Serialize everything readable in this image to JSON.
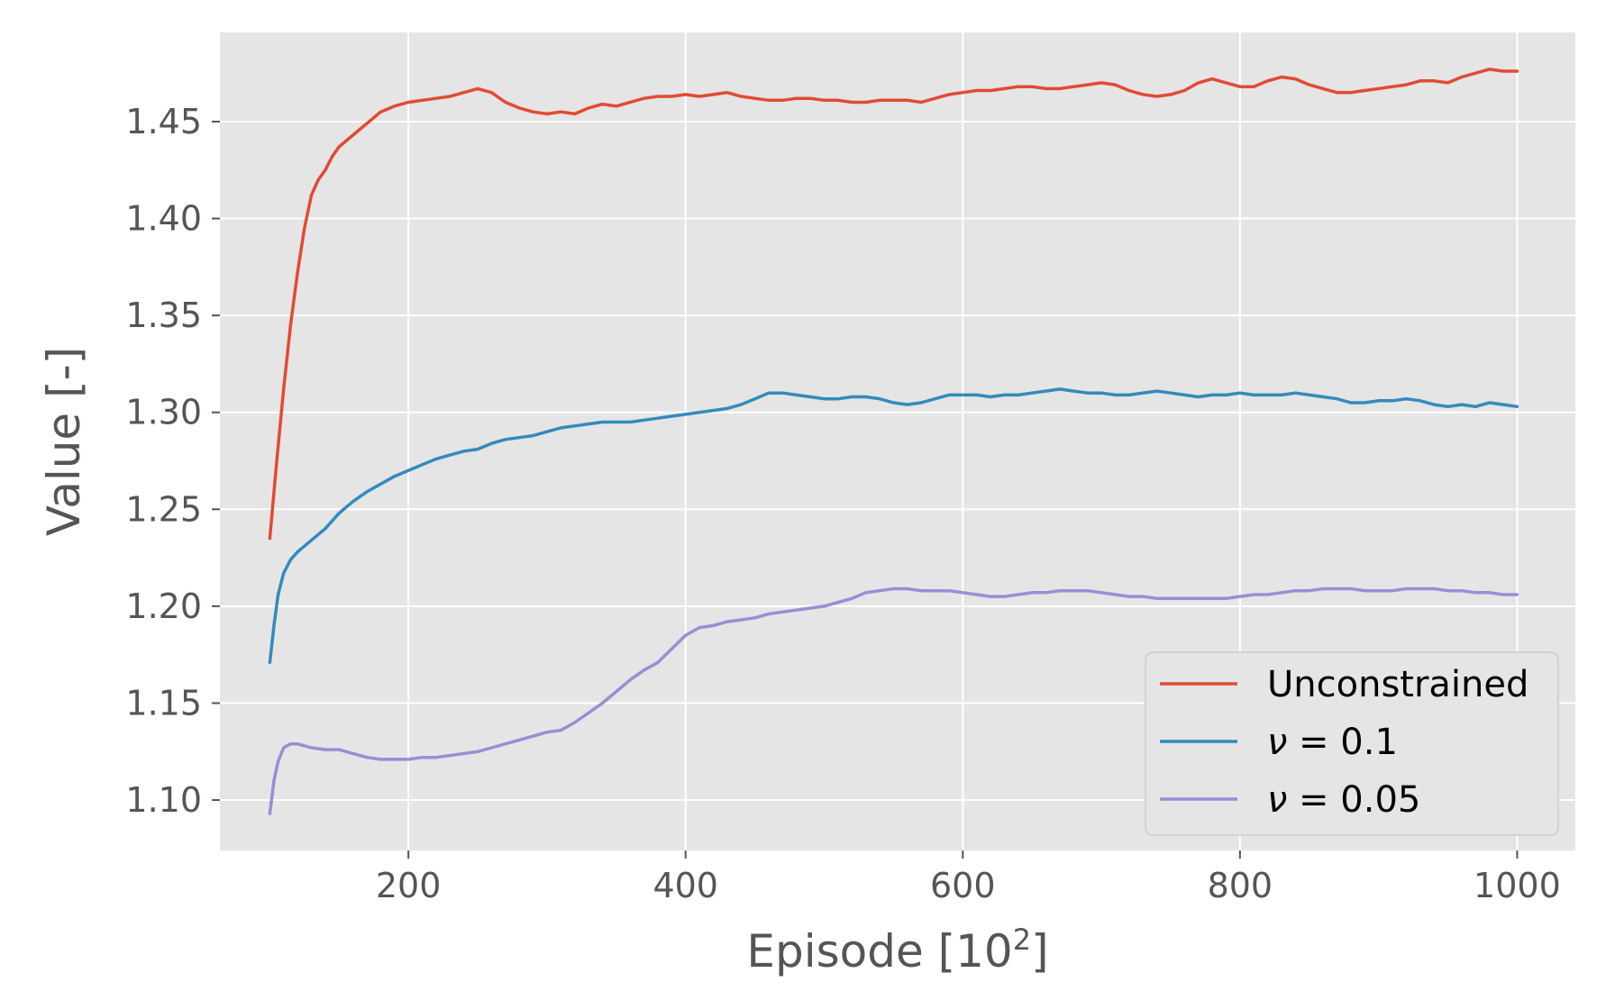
{
  "chart_data": {
    "type": "line",
    "xlabel_main": "Episode [10",
    "xlabel_sup": "2",
    "xlabel_end": "]",
    "ylabel": "Value [-]",
    "xlim": [
      64,
      1042
    ],
    "ylim": [
      1.074,
      1.496
    ],
    "xticks": [
      200,
      400,
      600,
      800,
      1000
    ],
    "xtick_labels": [
      "200",
      "400",
      "600",
      "800",
      "1000"
    ],
    "yticks": [
      1.1,
      1.15,
      1.2,
      1.25,
      1.3,
      1.35,
      1.4,
      1.45
    ],
    "ytick_labels": [
      "1.10",
      "1.15",
      "1.20",
      "1.25",
      "1.30",
      "1.35",
      "1.40",
      "1.45"
    ],
    "grid": true,
    "legend_position": "lower-right",
    "background": "#e5e5e5",
    "series": [
      {
        "name": "Unconstrained",
        "color": "#e24a33",
        "points": [
          [
            100,
            1.235
          ],
          [
            105,
            1.275
          ],
          [
            110,
            1.312
          ],
          [
            115,
            1.345
          ],
          [
            120,
            1.372
          ],
          [
            125,
            1.395
          ],
          [
            130,
            1.412
          ],
          [
            135,
            1.42
          ],
          [
            140,
            1.425
          ],
          [
            145,
            1.432
          ],
          [
            150,
            1.437
          ],
          [
            160,
            1.443
          ],
          [
            170,
            1.449
          ],
          [
            180,
            1.455
          ],
          [
            190,
            1.458
          ],
          [
            200,
            1.46
          ],
          [
            210,
            1.461
          ],
          [
            220,
            1.462
          ],
          [
            230,
            1.463
          ],
          [
            240,
            1.465
          ],
          [
            250,
            1.467
          ],
          [
            260,
            1.465
          ],
          [
            270,
            1.46
          ],
          [
            280,
            1.457
          ],
          [
            290,
            1.455
          ],
          [
            300,
            1.454
          ],
          [
            310,
            1.455
          ],
          [
            320,
            1.454
          ],
          [
            330,
            1.457
          ],
          [
            340,
            1.459
          ],
          [
            350,
            1.458
          ],
          [
            360,
            1.46
          ],
          [
            370,
            1.462
          ],
          [
            380,
            1.463
          ],
          [
            390,
            1.463
          ],
          [
            400,
            1.464
          ],
          [
            410,
            1.463
          ],
          [
            420,
            1.464
          ],
          [
            430,
            1.465
          ],
          [
            440,
            1.463
          ],
          [
            450,
            1.462
          ],
          [
            460,
            1.461
          ],
          [
            470,
            1.461
          ],
          [
            480,
            1.462
          ],
          [
            490,
            1.462
          ],
          [
            500,
            1.461
          ],
          [
            510,
            1.461
          ],
          [
            520,
            1.46
          ],
          [
            530,
            1.46
          ],
          [
            540,
            1.461
          ],
          [
            550,
            1.461
          ],
          [
            560,
            1.461
          ],
          [
            570,
            1.46
          ],
          [
            580,
            1.462
          ],
          [
            590,
            1.464
          ],
          [
            600,
            1.465
          ],
          [
            610,
            1.466
          ],
          [
            620,
            1.466
          ],
          [
            630,
            1.467
          ],
          [
            640,
            1.468
          ],
          [
            650,
            1.468
          ],
          [
            660,
            1.467
          ],
          [
            670,
            1.467
          ],
          [
            680,
            1.468
          ],
          [
            690,
            1.469
          ],
          [
            700,
            1.47
          ],
          [
            710,
            1.469
          ],
          [
            720,
            1.466
          ],
          [
            730,
            1.464
          ],
          [
            740,
            1.463
          ],
          [
            750,
            1.464
          ],
          [
            760,
            1.466
          ],
          [
            770,
            1.47
          ],
          [
            780,
            1.472
          ],
          [
            790,
            1.47
          ],
          [
            800,
            1.468
          ],
          [
            810,
            1.468
          ],
          [
            820,
            1.471
          ],
          [
            830,
            1.473
          ],
          [
            840,
            1.472
          ],
          [
            850,
            1.469
          ],
          [
            860,
            1.467
          ],
          [
            870,
            1.465
          ],
          [
            880,
            1.465
          ],
          [
            890,
            1.466
          ],
          [
            900,
            1.467
          ],
          [
            910,
            1.468
          ],
          [
            920,
            1.469
          ],
          [
            930,
            1.471
          ],
          [
            940,
            1.471
          ],
          [
            950,
            1.47
          ],
          [
            960,
            1.473
          ],
          [
            970,
            1.475
          ],
          [
            980,
            1.477
          ],
          [
            990,
            1.476
          ],
          [
            1000,
            1.476
          ]
        ]
      },
      {
        "name": "ν = 0.1",
        "name_var": "ν",
        "name_rest": " = 0.1",
        "color": "#348abd",
        "points": [
          [
            100,
            1.171
          ],
          [
            103,
            1.19
          ],
          [
            106,
            1.206
          ],
          [
            110,
            1.217
          ],
          [
            115,
            1.224
          ],
          [
            120,
            1.228
          ],
          [
            125,
            1.231
          ],
          [
            130,
            1.234
          ],
          [
            140,
            1.24
          ],
          [
            150,
            1.248
          ],
          [
            160,
            1.254
          ],
          [
            170,
            1.259
          ],
          [
            180,
            1.263
          ],
          [
            190,
            1.267
          ],
          [
            200,
            1.27
          ],
          [
            210,
            1.273
          ],
          [
            220,
            1.276
          ],
          [
            230,
            1.278
          ],
          [
            240,
            1.28
          ],
          [
            250,
            1.281
          ],
          [
            260,
            1.284
          ],
          [
            270,
            1.286
          ],
          [
            280,
            1.287
          ],
          [
            290,
            1.288
          ],
          [
            300,
            1.29
          ],
          [
            310,
            1.292
          ],
          [
            320,
            1.293
          ],
          [
            330,
            1.294
          ],
          [
            340,
            1.295
          ],
          [
            350,
            1.295
          ],
          [
            360,
            1.295
          ],
          [
            370,
            1.296
          ],
          [
            380,
            1.297
          ],
          [
            390,
            1.298
          ],
          [
            400,
            1.299
          ],
          [
            410,
            1.3
          ],
          [
            420,
            1.301
          ],
          [
            430,
            1.302
          ],
          [
            440,
            1.304
          ],
          [
            450,
            1.307
          ],
          [
            460,
            1.31
          ],
          [
            470,
            1.31
          ],
          [
            480,
            1.309
          ],
          [
            490,
            1.308
          ],
          [
            500,
            1.307
          ],
          [
            510,
            1.307
          ],
          [
            520,
            1.308
          ],
          [
            530,
            1.308
          ],
          [
            540,
            1.307
          ],
          [
            550,
            1.305
          ],
          [
            560,
            1.304
          ],
          [
            570,
            1.305
          ],
          [
            580,
            1.307
          ],
          [
            590,
            1.309
          ],
          [
            600,
            1.309
          ],
          [
            610,
            1.309
          ],
          [
            620,
            1.308
          ],
          [
            630,
            1.309
          ],
          [
            640,
            1.309
          ],
          [
            650,
            1.31
          ],
          [
            660,
            1.311
          ],
          [
            670,
            1.312
          ],
          [
            680,
            1.311
          ],
          [
            690,
            1.31
          ],
          [
            700,
            1.31
          ],
          [
            710,
            1.309
          ],
          [
            720,
            1.309
          ],
          [
            730,
            1.31
          ],
          [
            740,
            1.311
          ],
          [
            750,
            1.31
          ],
          [
            760,
            1.309
          ],
          [
            770,
            1.308
          ],
          [
            780,
            1.309
          ],
          [
            790,
            1.309
          ],
          [
            800,
            1.31
          ],
          [
            810,
            1.309
          ],
          [
            820,
            1.309
          ],
          [
            830,
            1.309
          ],
          [
            840,
            1.31
          ],
          [
            850,
            1.309
          ],
          [
            860,
            1.308
          ],
          [
            870,
            1.307
          ],
          [
            880,
            1.305
          ],
          [
            890,
            1.305
          ],
          [
            900,
            1.306
          ],
          [
            910,
            1.306
          ],
          [
            920,
            1.307
          ],
          [
            930,
            1.306
          ],
          [
            940,
            1.304
          ],
          [
            950,
            1.303
          ],
          [
            960,
            1.304
          ],
          [
            970,
            1.303
          ],
          [
            980,
            1.305
          ],
          [
            990,
            1.304
          ],
          [
            1000,
            1.303
          ]
        ]
      },
      {
        "name": "ν = 0.05",
        "name_var": "ν",
        "name_rest": " = 0.05",
        "color": "#988ed5",
        "points": [
          [
            100,
            1.093
          ],
          [
            103,
            1.11
          ],
          [
            106,
            1.12
          ],
          [
            110,
            1.127
          ],
          [
            115,
            1.129
          ],
          [
            120,
            1.129
          ],
          [
            130,
            1.127
          ],
          [
            140,
            1.126
          ],
          [
            150,
            1.126
          ],
          [
            160,
            1.124
          ],
          [
            170,
            1.122
          ],
          [
            180,
            1.121
          ],
          [
            190,
            1.121
          ],
          [
            200,
            1.121
          ],
          [
            210,
            1.122
          ],
          [
            220,
            1.122
          ],
          [
            230,
            1.123
          ],
          [
            240,
            1.124
          ],
          [
            250,
            1.125
          ],
          [
            260,
            1.127
          ],
          [
            270,
            1.129
          ],
          [
            280,
            1.131
          ],
          [
            290,
            1.133
          ],
          [
            300,
            1.135
          ],
          [
            310,
            1.136
          ],
          [
            320,
            1.14
          ],
          [
            330,
            1.145
          ],
          [
            340,
            1.15
          ],
          [
            350,
            1.156
          ],
          [
            360,
            1.162
          ],
          [
            370,
            1.167
          ],
          [
            380,
            1.171
          ],
          [
            390,
            1.178
          ],
          [
            400,
            1.185
          ],
          [
            410,
            1.189
          ],
          [
            420,
            1.19
          ],
          [
            430,
            1.192
          ],
          [
            440,
            1.193
          ],
          [
            450,
            1.194
          ],
          [
            460,
            1.196
          ],
          [
            470,
            1.197
          ],
          [
            480,
            1.198
          ],
          [
            490,
            1.199
          ],
          [
            500,
            1.2
          ],
          [
            510,
            1.202
          ],
          [
            520,
            1.204
          ],
          [
            530,
            1.207
          ],
          [
            540,
            1.208
          ],
          [
            550,
            1.209
          ],
          [
            560,
            1.209
          ],
          [
            570,
            1.208
          ],
          [
            580,
            1.208
          ],
          [
            590,
            1.208
          ],
          [
            600,
            1.207
          ],
          [
            610,
            1.206
          ],
          [
            620,
            1.205
          ],
          [
            630,
            1.205
          ],
          [
            640,
            1.206
          ],
          [
            650,
            1.207
          ],
          [
            660,
            1.207
          ],
          [
            670,
            1.208
          ],
          [
            680,
            1.208
          ],
          [
            690,
            1.208
          ],
          [
            700,
            1.207
          ],
          [
            710,
            1.206
          ],
          [
            720,
            1.205
          ],
          [
            730,
            1.205
          ],
          [
            740,
            1.204
          ],
          [
            750,
            1.204
          ],
          [
            760,
            1.204
          ],
          [
            770,
            1.204
          ],
          [
            780,
            1.204
          ],
          [
            790,
            1.204
          ],
          [
            800,
            1.205
          ],
          [
            810,
            1.206
          ],
          [
            820,
            1.206
          ],
          [
            830,
            1.207
          ],
          [
            840,
            1.208
          ],
          [
            850,
            1.208
          ],
          [
            860,
            1.209
          ],
          [
            870,
            1.209
          ],
          [
            880,
            1.209
          ],
          [
            890,
            1.208
          ],
          [
            900,
            1.208
          ],
          [
            910,
            1.208
          ],
          [
            920,
            1.209
          ],
          [
            930,
            1.209
          ],
          [
            940,
            1.209
          ],
          [
            950,
            1.208
          ],
          [
            960,
            1.208
          ],
          [
            970,
            1.207
          ],
          [
            980,
            1.207
          ],
          [
            990,
            1.206
          ],
          [
            1000,
            1.206
          ]
        ]
      }
    ]
  }
}
